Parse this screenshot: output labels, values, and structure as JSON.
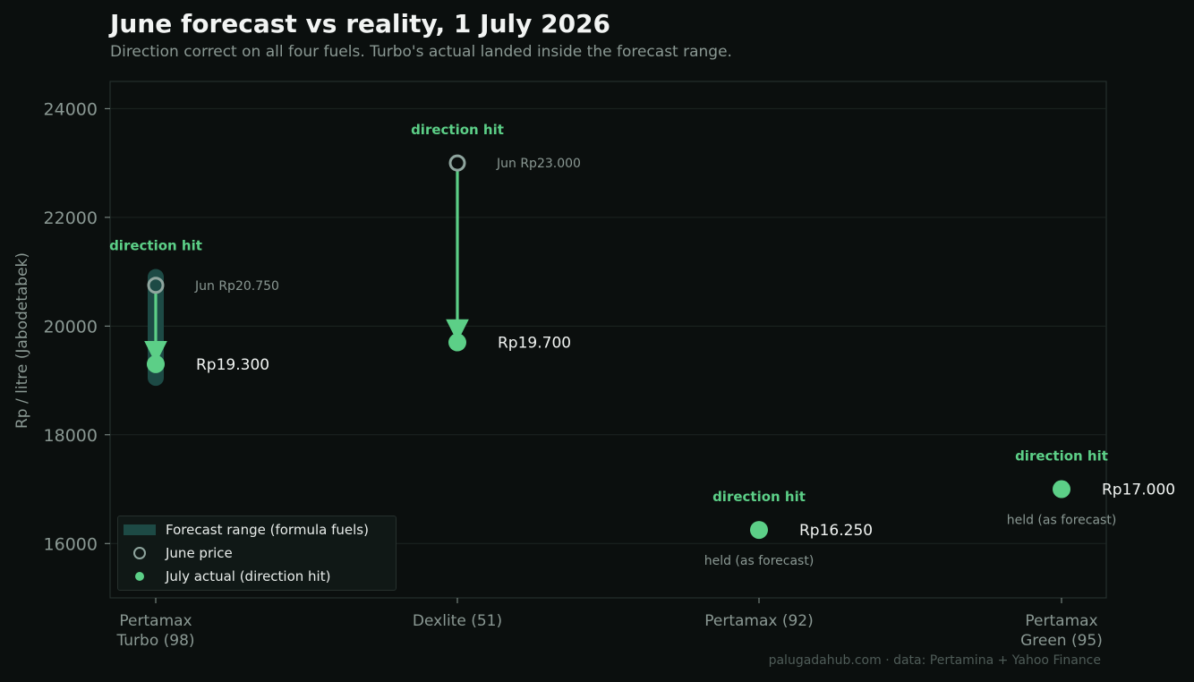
{
  "title": "June forecast vs reality, 1 July 2026",
  "subtitle": "Direction correct on all four fuels. Turbo's actual landed inside the forecast range.",
  "credit": "palugadahub.com · data: Pertamina + Yahoo Finance",
  "colors": {
    "background": "#0b0f0e",
    "grid": "#1c2522",
    "axis_text": "#8a9893",
    "range_band": "#1d4a45",
    "june_marker": "#8fa59e",
    "actual": "#5ccf87",
    "hit_label": "#5ccf87",
    "value_label": "#f0f3f1",
    "note": "#8a9893"
  },
  "chart_data": {
    "type": "scatter",
    "ylabel": "Rp / litre (Jabodetabek)",
    "ylim": [
      15000,
      24500
    ],
    "yticks": [
      16000,
      18000,
      20000,
      22000,
      24000
    ],
    "grid": true,
    "legend_position": "lower-left",
    "categories": [
      {
        "label_lines": [
          "Pertamax",
          "Turbo (98)"
        ],
        "range_low": 18900,
        "range_high": 21050,
        "june": 20750,
        "july": 19300,
        "june_label": "Jun Rp20.750",
        "july_label": "Rp19.300",
        "hit_label": "direction hit",
        "note": ""
      },
      {
        "label_lines": [
          "Dexlite (51)"
        ],
        "range_low": null,
        "range_high": null,
        "june": 23000,
        "july": 19700,
        "june_label": "Jun Rp23.000",
        "july_label": "Rp19.700",
        "hit_label": "direction hit",
        "note": ""
      },
      {
        "label_lines": [
          "Pertamax (92)"
        ],
        "range_low": null,
        "range_high": null,
        "june": null,
        "july": 16250,
        "june_label": "",
        "july_label": "Rp16.250",
        "hit_label": "direction hit",
        "note": "held (as forecast)"
      },
      {
        "label_lines": [
          "Pertamax",
          "Green (95)"
        ],
        "range_low": null,
        "range_high": null,
        "june": null,
        "july": 17000,
        "june_label": "",
        "july_label": "Rp17.000",
        "hit_label": "direction hit",
        "note": "held (as forecast)"
      }
    ]
  },
  "legend": {
    "items": [
      {
        "label": "Forecast range (formula fuels)"
      },
      {
        "label": "June price"
      },
      {
        "label": "July actual (direction hit)"
      }
    ]
  }
}
